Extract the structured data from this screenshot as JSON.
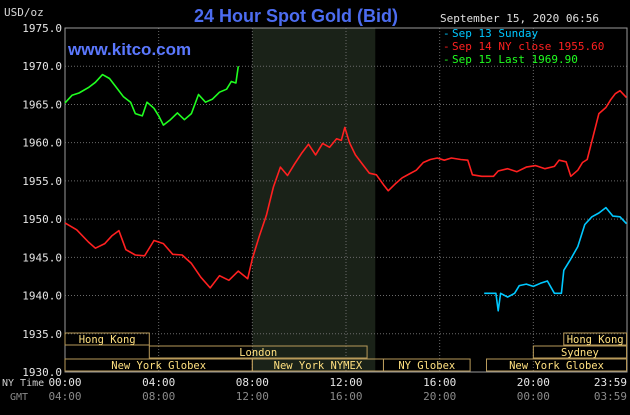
{
  "chart_data": {
    "type": "line",
    "title": "24 Hour Spot Gold (Bid)",
    "watermark": "www.kitco.com",
    "unit_label": "USD/oz",
    "timestamp": "September 15, 2020 06:56",
    "ylim": [
      1930,
      1975
    ],
    "y_ticks": [
      1930,
      1935,
      1940,
      1945,
      1950,
      1955,
      1960,
      1965,
      1970,
      1975
    ],
    "y_tick_labels": [
      "1930.0",
      "1935.0",
      "1940.0",
      "1945.0",
      "1950.0",
      "1955.0",
      "1960.0",
      "1965.0",
      "1970.0",
      "1975.0"
    ],
    "x_range": [
      0,
      24
    ],
    "x_ticks": [
      0,
      4,
      8,
      12,
      16,
      20,
      23.983
    ],
    "ny_time_label": "NY Time",
    "gmt_label": "GMT",
    "ny_ticks": [
      "00:00",
      "04:00",
      "08:00",
      "12:00",
      "16:00",
      "20:00",
      "23:59"
    ],
    "gmt_ticks": [
      "04:00",
      "08:00",
      "12:00",
      "16:00",
      "20:00",
      "00:00",
      "03:59"
    ],
    "shaded_session": [
      8,
      13.25
    ],
    "legend": [
      {
        "label": "Sep 13 Sunday",
        "color": "#00c8ff"
      },
      {
        "label": "Sep 14 NY close 1955.60",
        "color": "#ff2020"
      },
      {
        "label": "Sep 15 Last 1969.90",
        "color": "#20ff20"
      }
    ],
    "series": [
      {
        "name": "Sep 13 Sunday",
        "color": "#00c8ff",
        "points": [
          [
            17.9,
            1940.3
          ],
          [
            18.4,
            1940.3
          ],
          [
            18.5,
            1938.0
          ],
          [
            18.6,
            1940.3
          ],
          [
            18.9,
            1939.8
          ],
          [
            19.2,
            1940.3
          ],
          [
            19.4,
            1941.3
          ],
          [
            19.7,
            1941.5
          ],
          [
            20.0,
            1941.2
          ],
          [
            20.3,
            1941.6
          ],
          [
            20.6,
            1941.9
          ],
          [
            20.9,
            1940.3
          ],
          [
            21.2,
            1940.3
          ],
          [
            21.3,
            1943.3
          ],
          [
            21.6,
            1944.8
          ],
          [
            21.9,
            1946.4
          ],
          [
            22.2,
            1949.3
          ],
          [
            22.5,
            1950.3
          ],
          [
            22.8,
            1950.8
          ],
          [
            23.1,
            1951.5
          ],
          [
            23.4,
            1950.4
          ],
          [
            23.7,
            1950.3
          ],
          [
            23.98,
            1949.4
          ]
        ]
      },
      {
        "name": "Sep 14 NY close 1955.60",
        "color": "#ff2020",
        "points": [
          [
            0.0,
            1949.5
          ],
          [
            0.5,
            1948.6
          ],
          [
            1.0,
            1947.0
          ],
          [
            1.3,
            1946.2
          ],
          [
            1.7,
            1946.8
          ],
          [
            2.0,
            1947.8
          ],
          [
            2.3,
            1948.5
          ],
          [
            2.6,
            1946.0
          ],
          [
            3.0,
            1945.3
          ],
          [
            3.4,
            1945.2
          ],
          [
            3.8,
            1947.2
          ],
          [
            4.2,
            1946.8
          ],
          [
            4.6,
            1945.4
          ],
          [
            5.0,
            1945.3
          ],
          [
            5.4,
            1944.2
          ],
          [
            5.8,
            1942.4
          ],
          [
            6.2,
            1941.0
          ],
          [
            6.6,
            1942.6
          ],
          [
            7.0,
            1942.0
          ],
          [
            7.4,
            1943.2
          ],
          [
            7.8,
            1942.2
          ],
          [
            8.0,
            1944.8
          ],
          [
            8.3,
            1947.8
          ],
          [
            8.6,
            1950.5
          ],
          [
            8.9,
            1954.2
          ],
          [
            9.2,
            1956.8
          ],
          [
            9.5,
            1955.7
          ],
          [
            9.8,
            1957.2
          ],
          [
            10.1,
            1958.6
          ],
          [
            10.4,
            1959.8
          ],
          [
            10.7,
            1958.4
          ],
          [
            11.0,
            1959.9
          ],
          [
            11.3,
            1959.4
          ],
          [
            11.6,
            1960.5
          ],
          [
            11.8,
            1960.3
          ],
          [
            11.95,
            1962.0
          ],
          [
            12.15,
            1960.0
          ],
          [
            12.4,
            1958.4
          ],
          [
            12.7,
            1957.2
          ],
          [
            13.0,
            1956.0
          ],
          [
            13.3,
            1955.8
          ],
          [
            13.6,
            1954.5
          ],
          [
            13.8,
            1953.7
          ],
          [
            14.1,
            1954.6
          ],
          [
            14.4,
            1955.4
          ],
          [
            14.7,
            1955.9
          ],
          [
            15.0,
            1956.4
          ],
          [
            15.3,
            1957.4
          ],
          [
            15.6,
            1957.8
          ],
          [
            15.9,
            1958.0
          ],
          [
            16.2,
            1957.7
          ],
          [
            16.5,
            1958.0
          ],
          [
            16.9,
            1957.8
          ],
          [
            17.2,
            1957.7
          ],
          [
            17.4,
            1955.8
          ],
          [
            17.8,
            1955.6
          ],
          [
            18.3,
            1955.6
          ],
          [
            18.5,
            1956.3
          ],
          [
            18.9,
            1956.6
          ],
          [
            19.3,
            1956.2
          ],
          [
            19.7,
            1956.8
          ],
          [
            20.1,
            1957.0
          ],
          [
            20.5,
            1956.6
          ],
          [
            20.9,
            1956.9
          ],
          [
            21.1,
            1957.7
          ],
          [
            21.4,
            1957.5
          ],
          [
            21.6,
            1955.6
          ],
          [
            21.9,
            1956.4
          ],
          [
            22.1,
            1957.4
          ],
          [
            22.3,
            1957.8
          ],
          [
            22.5,
            1960.2
          ],
          [
            22.8,
            1963.8
          ],
          [
            23.1,
            1964.6
          ],
          [
            23.3,
            1965.6
          ],
          [
            23.5,
            1966.4
          ],
          [
            23.7,
            1966.8
          ],
          [
            23.98,
            1965.9
          ]
        ]
      },
      {
        "name": "Sep 15 Last 1969.90",
        "color": "#20ff20",
        "points": [
          [
            0.0,
            1965.2
          ],
          [
            0.3,
            1966.2
          ],
          [
            0.6,
            1966.5
          ],
          [
            1.0,
            1967.2
          ],
          [
            1.3,
            1967.9
          ],
          [
            1.6,
            1968.9
          ],
          [
            1.9,
            1968.4
          ],
          [
            2.2,
            1967.2
          ],
          [
            2.5,
            1966.0
          ],
          [
            2.8,
            1965.3
          ],
          [
            3.0,
            1963.8
          ],
          [
            3.3,
            1963.5
          ],
          [
            3.5,
            1965.3
          ],
          [
            3.8,
            1964.5
          ],
          [
            4.0,
            1963.5
          ],
          [
            4.2,
            1962.3
          ],
          [
            4.5,
            1963.0
          ],
          [
            4.8,
            1963.9
          ],
          [
            5.1,
            1963.0
          ],
          [
            5.4,
            1963.8
          ],
          [
            5.7,
            1966.3
          ],
          [
            6.0,
            1965.3
          ],
          [
            6.3,
            1965.7
          ],
          [
            6.6,
            1966.6
          ],
          [
            6.9,
            1967.0
          ],
          [
            7.1,
            1968.0
          ],
          [
            7.3,
            1967.8
          ],
          [
            7.4,
            1970.0
          ]
        ]
      }
    ],
    "sessions": [
      {
        "label": "Hong Kong",
        "start": 0,
        "end": 3.6,
        "row": 1
      },
      {
        "label": "London",
        "start": 3.6,
        "end": 12.9,
        "row": 2
      },
      {
        "label": "New York Globex",
        "start": 0,
        "end": 8.0,
        "row": 3
      },
      {
        "label": "New York NYMEX",
        "start": 8.0,
        "end": 13.6,
        "row": 3
      },
      {
        "label": "NY Globex",
        "start": 13.6,
        "end": 17.3,
        "row": 3
      },
      {
        "label": "Hong Kong",
        "start": 21.3,
        "end": 23.98,
        "row": 1
      },
      {
        "label": "Sydney",
        "start": 20.0,
        "end": 23.98,
        "row": 2
      },
      {
        "label": "New York Globex",
        "start": 18.0,
        "end": 23.98,
        "row": 3
      }
    ]
  }
}
